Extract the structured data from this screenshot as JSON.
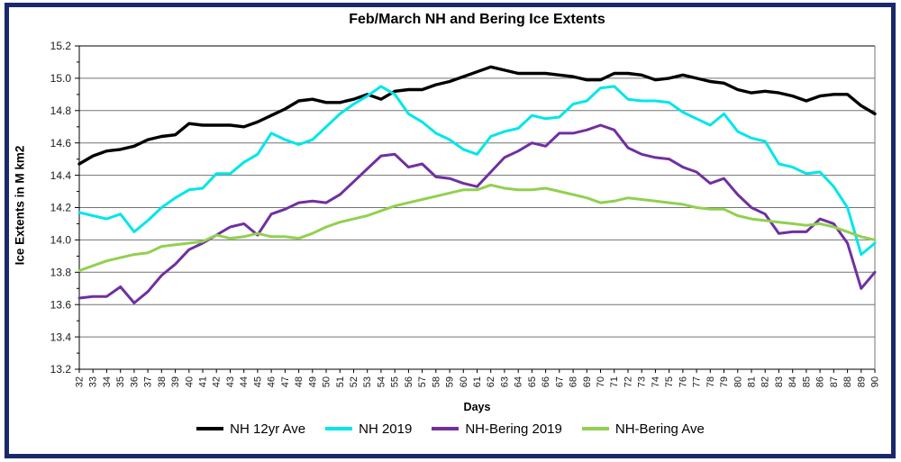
{
  "window": {
    "border_color": "#19296B",
    "background": "#FFFFFF"
  },
  "chart_data": {
    "type": "line",
    "title": "Feb/March NH and Bering Ice Extents",
    "xlabel": "Days",
    "ylabel": "Ice Extents in M km2",
    "xlim": [
      32,
      90
    ],
    "ylim": [
      13.2,
      15.2
    ],
    "y_tick_step": 0.2,
    "x_tick_step": 1,
    "grid": "horizontal",
    "grid_color": "#737373",
    "axis_color": "#000000",
    "tick_label_color": "#1A1A1A",
    "legend_position": "bottom",
    "x": [
      32,
      33,
      34,
      35,
      36,
      37,
      38,
      39,
      40,
      41,
      42,
      43,
      44,
      45,
      46,
      47,
      48,
      49,
      50,
      51,
      52,
      53,
      54,
      55,
      56,
      57,
      58,
      59,
      60,
      61,
      62,
      63,
      64,
      65,
      66,
      67,
      68,
      69,
      70,
      71,
      72,
      73,
      74,
      75,
      76,
      77,
      78,
      79,
      80,
      81,
      82,
      83,
      84,
      85,
      86,
      87,
      88,
      89,
      90
    ],
    "series": [
      {
        "name": "NH 12yr Ave",
        "color": "#000000",
        "values": [
          14.47,
          14.52,
          14.55,
          14.56,
          14.58,
          14.62,
          14.64,
          14.65,
          14.72,
          14.71,
          14.71,
          14.71,
          14.7,
          14.73,
          14.77,
          14.81,
          14.86,
          14.87,
          14.85,
          14.85,
          14.87,
          14.9,
          14.87,
          14.92,
          14.93,
          14.93,
          14.96,
          14.98,
          15.01,
          15.04,
          15.07,
          15.05,
          15.03,
          15.03,
          15.03,
          15.02,
          15.01,
          14.99,
          14.99,
          15.03,
          15.03,
          15.02,
          14.99,
          15.0,
          15.02,
          15.0,
          14.98,
          14.97,
          14.93,
          14.91,
          14.92,
          14.91,
          14.89,
          14.86,
          14.89,
          14.9,
          14.9,
          14.83,
          14.78
        ]
      },
      {
        "name": "NH 2019",
        "color": "#00E6EA",
        "values": [
          14.17,
          14.15,
          14.13,
          14.16,
          14.05,
          14.12,
          14.2,
          14.26,
          14.31,
          14.32,
          14.41,
          14.41,
          14.48,
          14.53,
          14.66,
          14.62,
          14.59,
          14.62,
          14.7,
          14.78,
          14.84,
          14.89,
          14.95,
          14.9,
          14.78,
          14.73,
          14.66,
          14.62,
          14.56,
          14.53,
          14.64,
          14.67,
          14.69,
          14.77,
          14.75,
          14.76,
          14.84,
          14.86,
          14.94,
          14.95,
          14.87,
          14.86,
          14.86,
          14.85,
          14.79,
          14.75,
          14.71,
          14.78,
          14.67,
          14.63,
          14.61,
          14.47,
          14.45,
          14.41,
          14.42,
          14.33,
          14.2,
          13.91,
          13.98
        ]
      },
      {
        "name": "NH-Bering 2019",
        "color": "#7030A0",
        "values": [
          13.64,
          13.65,
          13.65,
          13.71,
          13.61,
          13.68,
          13.78,
          13.85,
          13.94,
          13.98,
          14.03,
          14.08,
          14.1,
          14.03,
          14.16,
          14.19,
          14.23,
          14.24,
          14.23,
          14.28,
          14.36,
          14.44,
          14.52,
          14.53,
          14.45,
          14.47,
          14.39,
          14.38,
          14.35,
          14.33,
          14.42,
          14.51,
          14.55,
          14.6,
          14.58,
          14.66,
          14.66,
          14.68,
          14.71,
          14.68,
          14.57,
          14.53,
          14.51,
          14.5,
          14.45,
          14.42,
          14.35,
          14.38,
          14.28,
          14.2,
          14.16,
          14.04,
          14.05,
          14.05,
          14.13,
          14.1,
          13.98,
          13.7,
          13.8
        ]
      },
      {
        "name": "NH-Bering Ave",
        "color": "#92D050",
        "values": [
          13.81,
          13.84,
          13.87,
          13.89,
          13.91,
          13.92,
          13.96,
          13.97,
          13.98,
          13.99,
          14.03,
          14.01,
          14.02,
          14.04,
          14.02,
          14.02,
          14.01,
          14.04,
          14.08,
          14.11,
          14.13,
          14.15,
          14.18,
          14.21,
          14.23,
          14.25,
          14.27,
          14.29,
          14.31,
          14.31,
          14.34,
          14.32,
          14.31,
          14.31,
          14.32,
          14.3,
          14.28,
          14.26,
          14.23,
          14.24,
          14.26,
          14.25,
          14.24,
          14.23,
          14.22,
          14.2,
          14.19,
          14.19,
          14.15,
          14.13,
          14.12,
          14.11,
          14.1,
          14.09,
          14.1,
          14.08,
          14.05,
          14.02,
          14.0
        ]
      }
    ]
  }
}
